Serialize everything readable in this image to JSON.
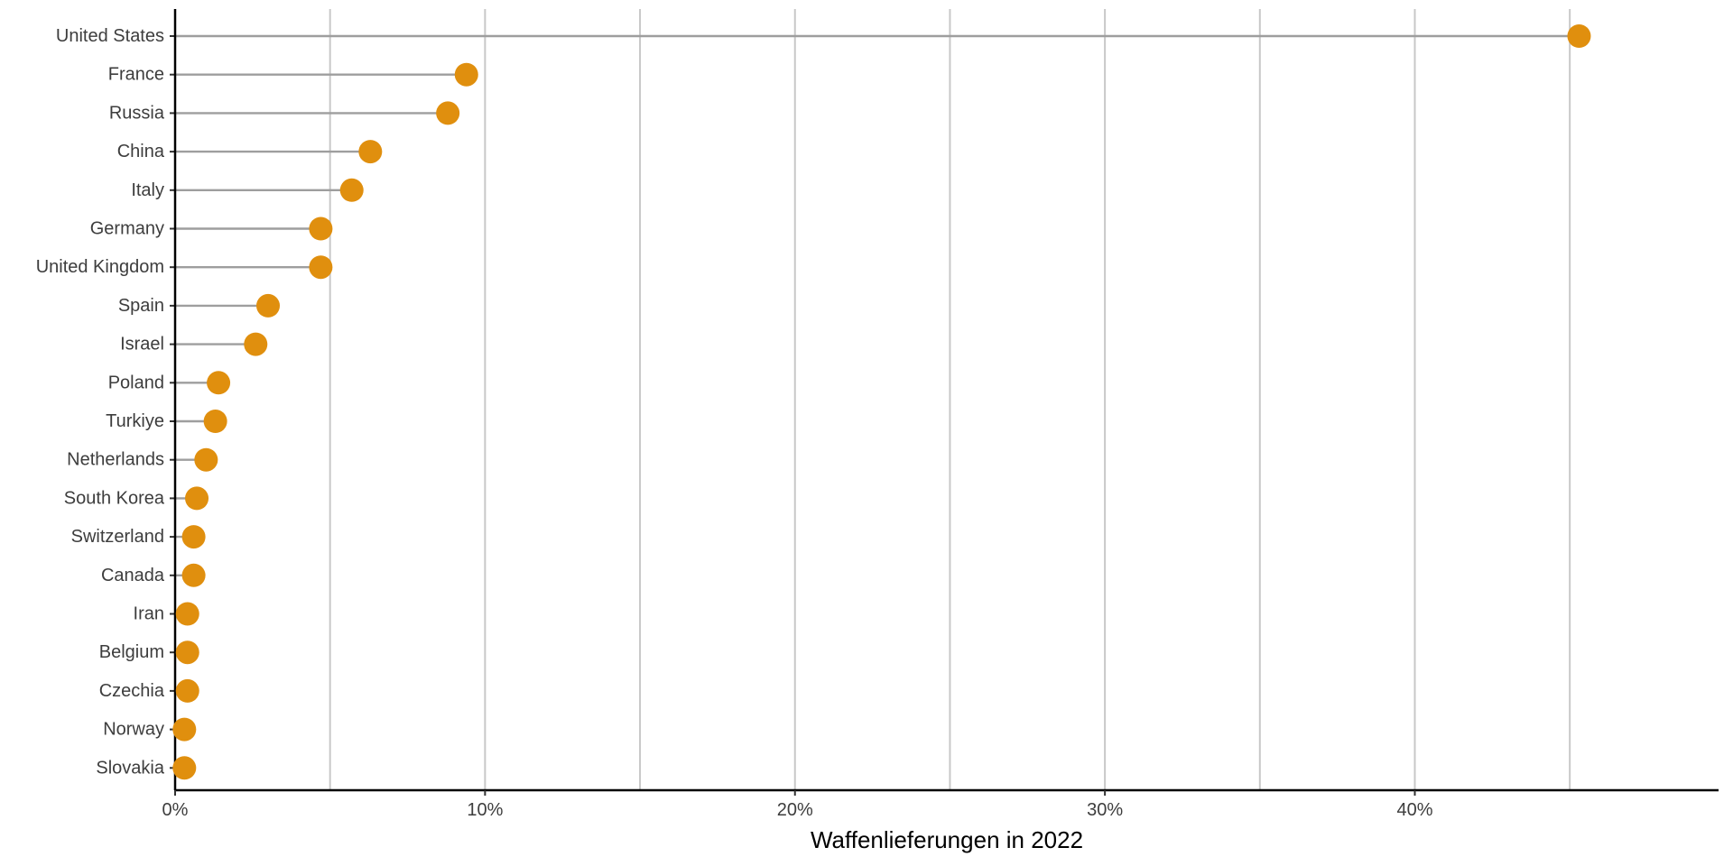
{
  "chart_data": {
    "type": "lollipop",
    "xlabel": "Waffenlieferungen in 2022",
    "xlim": [
      0,
      49.8
    ],
    "x_ticks": [
      0,
      10,
      20,
      30,
      40
    ],
    "x_tick_labels": [
      "0%",
      "10%",
      "20%",
      "30%",
      "40%"
    ],
    "gridlines_x": [
      5,
      10,
      15,
      20,
      25,
      30,
      35,
      40,
      45
    ],
    "grid": true,
    "categories": [
      "United States",
      "France",
      "Russia",
      "China",
      "Italy",
      "Germany",
      "United Kingdom",
      "Spain",
      "Israel",
      "Poland",
      "Turkiye",
      "Netherlands",
      "South Korea",
      "Switzerland",
      "Canada",
      "Iran",
      "Belgium",
      "Czechia",
      "Norway",
      "Slovakia"
    ],
    "values": [
      45.3,
      9.4,
      8.8,
      6.3,
      5.7,
      4.7,
      4.7,
      3.0,
      2.6,
      1.4,
      1.3,
      1.0,
      0.7,
      0.6,
      0.6,
      0.4,
      0.4,
      0.4,
      0.3,
      0.3
    ],
    "colors": {
      "point": "#E08F0E",
      "stem": "#9E9E9E",
      "grid": "#C8C8C8",
      "axis": "#000000"
    }
  }
}
